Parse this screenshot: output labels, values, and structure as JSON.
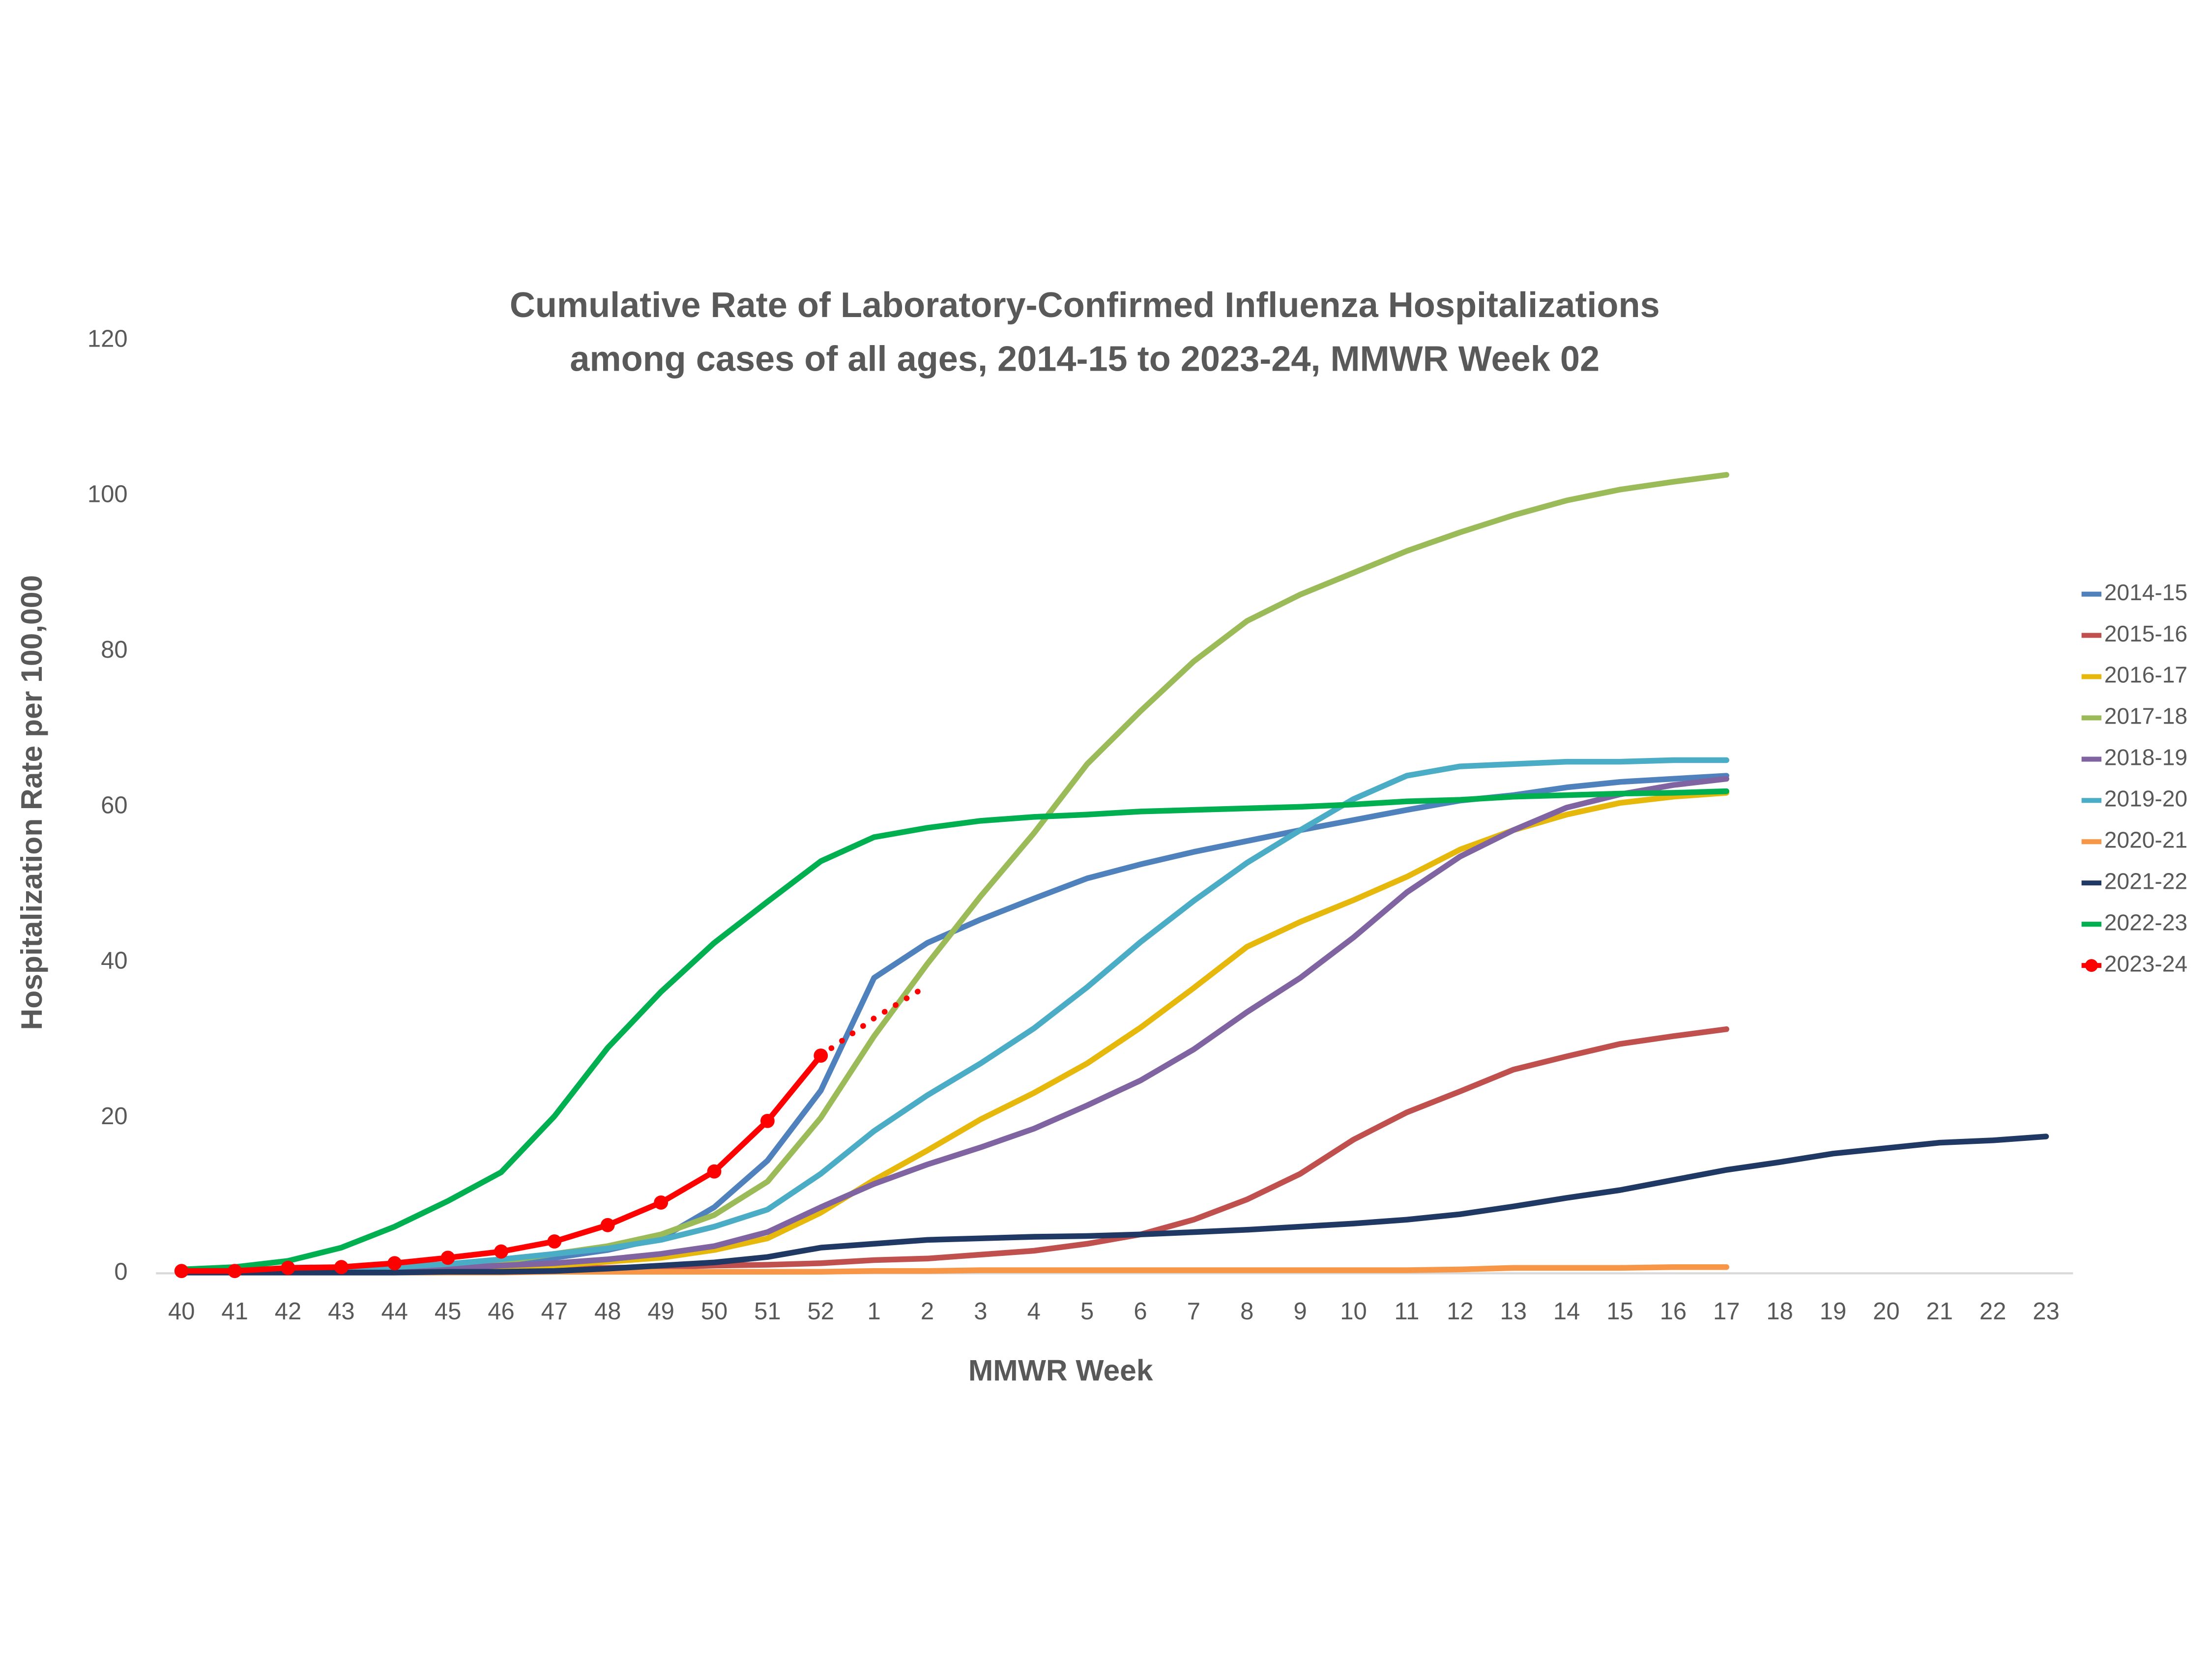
{
  "chart_data": {
    "type": "line",
    "title": [
      "Cumulative Rate of Laboratory-Confirmed Influenza Hospitalizations",
      "among cases of all ages, 2014-15 to 2023-24, MMWR Week 02"
    ],
    "x_label": "MMWR Week",
    "y_label": "Hospitalization Rate per 100,000",
    "categories": [
      40,
      41,
      42,
      43,
      44,
      45,
      46,
      47,
      48,
      49,
      50,
      51,
      52,
      1,
      2,
      3,
      4,
      5,
      6,
      7,
      8,
      9,
      10,
      11,
      12,
      13,
      14,
      15,
      16,
      17,
      18,
      19,
      20,
      21,
      22,
      23
    ],
    "ylim": [
      0,
      120
    ],
    "yticks": [
      0,
      20,
      40,
      60,
      80,
      100,
      120
    ],
    "grid": false,
    "legend": "right",
    "series": [
      {
        "name": "2014-15",
        "color": "#4F81BD",
        "values": [
          0.3,
          0.4,
          0.5,
          0.6,
          0.8,
          1,
          1.5,
          2,
          3,
          4.5,
          8.5,
          14.5,
          23.5,
          38,
          42.5,
          45.5,
          48.2,
          50.8,
          52.6,
          54.2,
          55.6,
          57,
          58.3,
          59.6,
          60.8,
          61.5,
          62.5,
          63.2,
          63.6,
          64,
          null,
          null,
          null,
          null,
          null,
          null
        ]
      },
      {
        "name": "2015-16",
        "color": "#C0504D",
        "values": [
          0.1,
          0.2,
          0.2,
          0.3,
          0.3,
          0.4,
          0.5,
          0.6,
          0.7,
          0.8,
          1,
          1.1,
          1.3,
          1.7,
          1.9,
          2.4,
          2.9,
          3.8,
          5,
          6.9,
          9.5,
          12.8,
          17.2,
          20.7,
          23.4,
          26.2,
          27.9,
          29.5,
          30.5,
          31.4,
          null,
          null,
          null,
          null,
          null,
          null
        ]
      },
      {
        "name": "2016-17",
        "color": "#E6B80C",
        "values": [
          0.1,
          0.2,
          0.3,
          0.4,
          0.5,
          0.6,
          0.8,
          1,
          1.5,
          2,
          3,
          4.5,
          7.8,
          12,
          15.8,
          19.8,
          23.2,
          27,
          31.6,
          36.7,
          42,
          45.2,
          48,
          51,
          54.5,
          57,
          59,
          60.5,
          61.3,
          61.8,
          null,
          null,
          null,
          null,
          null,
          null
        ]
      },
      {
        "name": "2017-18",
        "color": "#9BBB59",
        "values": [
          0.2,
          0.3,
          0.4,
          0.5,
          0.7,
          1,
          1.5,
          2.5,
          3.5,
          5,
          7.5,
          11.8,
          20,
          30.5,
          39.8,
          48.5,
          56.6,
          65.5,
          72.3,
          78.7,
          83.9,
          87.3,
          90.1,
          92.9,
          95.3,
          97.5,
          99.4,
          100.8,
          101.8,
          102.7,
          null,
          null,
          null,
          null,
          null,
          null
        ]
      },
      {
        "name": "2018-19",
        "color": "#8064A2",
        "values": [
          0.1,
          0.2,
          0.3,
          0.4,
          0.5,
          0.7,
          1,
          1.3,
          1.8,
          2.5,
          3.5,
          5.3,
          8.5,
          11.5,
          14,
          16.2,
          18.6,
          21.6,
          24.8,
          28.8,
          33.6,
          38,
          43.2,
          49,
          53.6,
          57,
          59.9,
          61.6,
          62.8,
          63.6,
          null,
          null,
          null,
          null,
          null,
          null
        ]
      },
      {
        "name": "2019-20",
        "color": "#4BACC6",
        "values": [
          0.1,
          0.2,
          0.3,
          0.5,
          0.8,
          1.2,
          1.8,
          2.5,
          3.2,
          4.3,
          6,
          8.2,
          12.8,
          18.3,
          22.9,
          27,
          31.5,
          36.8,
          42.6,
          47.9,
          52.8,
          57,
          61,
          64,
          65.2,
          65.5,
          65.8,
          65.8,
          66,
          66,
          null,
          null,
          null,
          null,
          null,
          null
        ]
      },
      {
        "name": "2020-21",
        "color": "#F79646",
        "values": [
          0.1,
          0.1,
          0.1,
          0.1,
          0.1,
          0.1,
          0.1,
          0.2,
          0.2,
          0.2,
          0.2,
          0.2,
          0.2,
          0.3,
          0.3,
          0.4,
          0.4,
          0.4,
          0.4,
          0.4,
          0.4,
          0.4,
          0.4,
          0.4,
          0.5,
          0.7,
          0.7,
          0.7,
          0.8,
          0.8,
          null,
          null,
          null,
          null,
          null,
          null
        ]
      },
      {
        "name": "2021-22",
        "color": "#1F3864",
        "values": [
          0.1,
          0.1,
          0.1,
          0.1,
          0.1,
          0.2,
          0.2,
          0.3,
          0.6,
          1,
          1.4,
          2.1,
          3.3,
          3.8,
          4.3,
          4.5,
          4.7,
          4.8,
          5,
          5.3,
          5.6,
          6,
          6.4,
          6.9,
          7.6,
          8.6,
          9.7,
          10.7,
          12,
          13.3,
          14.3,
          15.4,
          16.1,
          16.8,
          17.1,
          17.6
        ]
      },
      {
        "name": "2022-23",
        "color": "#00B050",
        "values": [
          0.5,
          0.8,
          1.6,
          3.3,
          6,
          9.3,
          13,
          20.2,
          29,
          36.2,
          42.5,
          47.8,
          53,
          56.1,
          57.3,
          58.2,
          58.7,
          59,
          59.4,
          59.6,
          59.8,
          60,
          60.3,
          60.7,
          60.9,
          61.3,
          61.5,
          61.7,
          61.8,
          62,
          null,
          null,
          null,
          null,
          null,
          null
        ]
      },
      {
        "name": "2023-24",
        "color": "#FF0000",
        "markers": true,
        "values": [
          0.3,
          0.3,
          0.7,
          0.8,
          1.3,
          2,
          2.8,
          4.1,
          6.2,
          9.1,
          13.1,
          19.6,
          28,
          null,
          null,
          null,
          null,
          null,
          null,
          null,
          null,
          null,
          null,
          null,
          null,
          null,
          null,
          null,
          null,
          null,
          null,
          null,
          null,
          null,
          null,
          null
        ],
        "projection_values": [
          null,
          null,
          null,
          null,
          null,
          null,
          null,
          null,
          null,
          null,
          null,
          null,
          28,
          32.8,
          37,
          null,
          null,
          null,
          null,
          null,
          null,
          null,
          null,
          null,
          null,
          null,
          null,
          null,
          null,
          null,
          null,
          null,
          null,
          null,
          null,
          null
        ]
      }
    ]
  }
}
